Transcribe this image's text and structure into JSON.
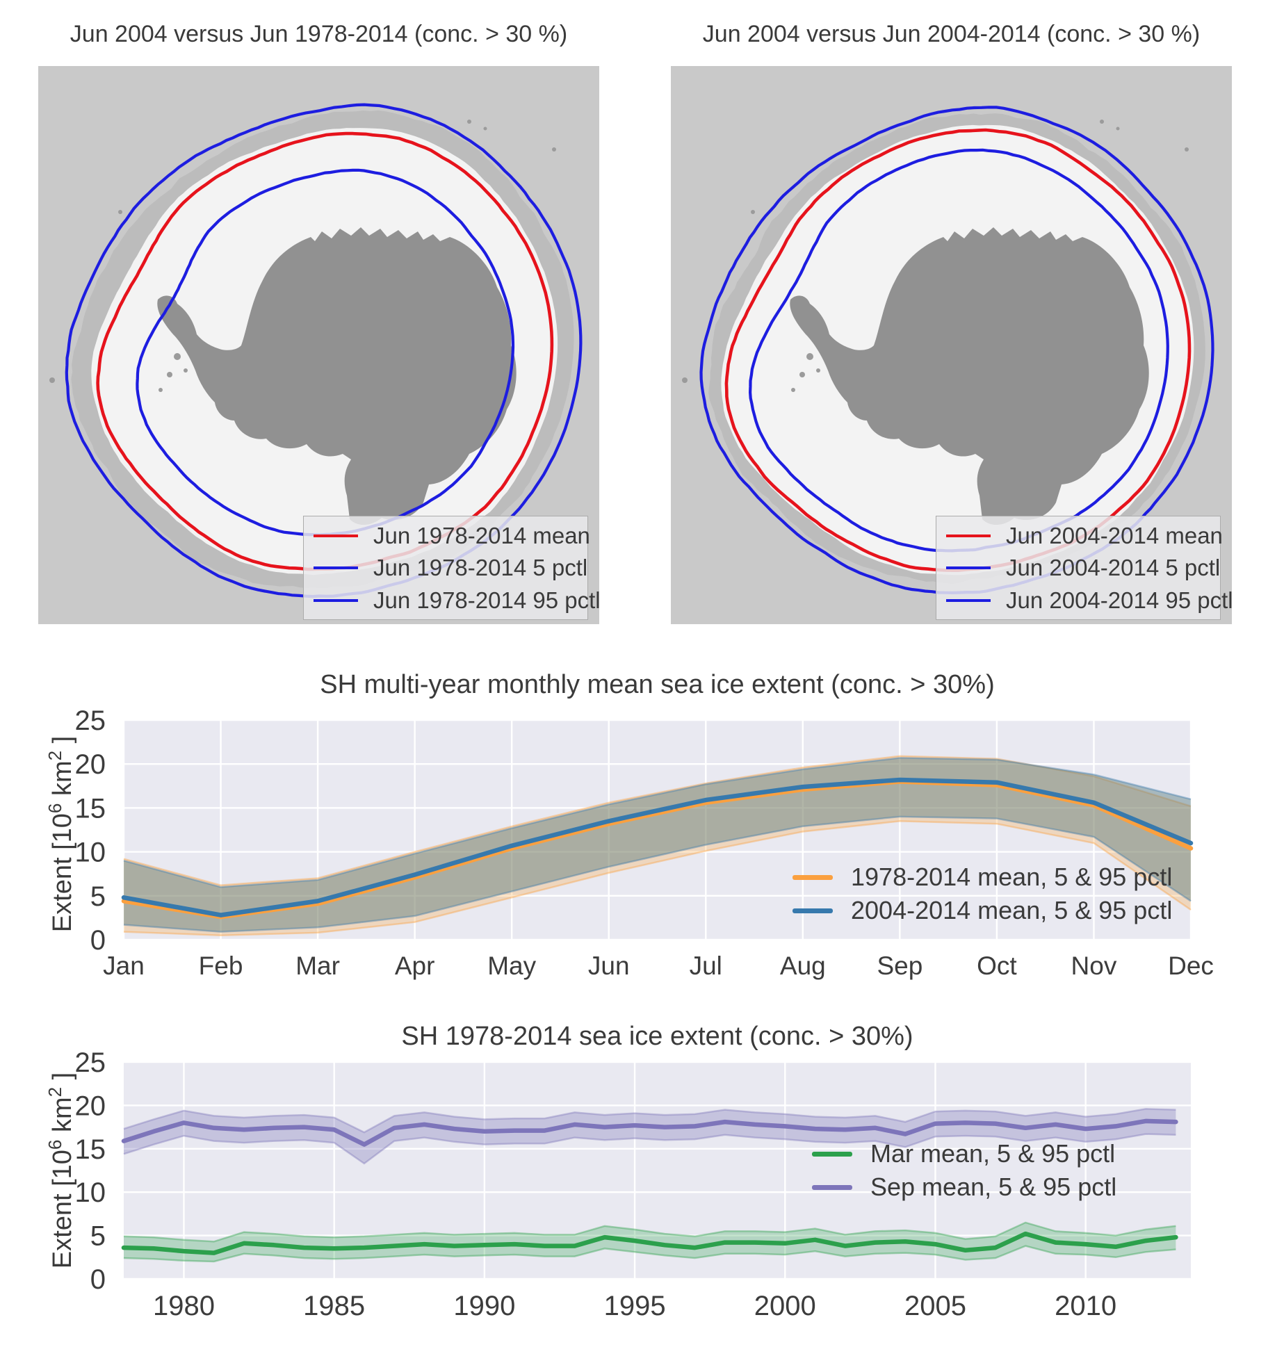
{
  "maps": {
    "colors": {
      "ocean": "#c9c9c9",
      "ice_white": "#f3f3f3",
      "extent_2004_gray": "#bcbcbc",
      "land": "#919191",
      "island": "#9b9b9b",
      "mean_contour": "#e6131c",
      "pctl_contour": "#1d1de0"
    },
    "left": {
      "title": "Jun 2004 versus Jun 1978-2014 (conc. > 30 %)",
      "legend": [
        {
          "label": "Jun 1978-2014 mean",
          "color": "#e6131c"
        },
        {
          "label": "Jun 1978-2014 5 pctl",
          "color": "#1d1de0"
        },
        {
          "label": "Jun 1978-2014 95 pctl",
          "color": "#1d1de0"
        }
      ]
    },
    "right": {
      "title": "Jun 2004 versus Jun 2004-2014 (conc. > 30 %)",
      "legend": [
        {
          "label": "Jun 2004-2014 mean",
          "color": "#e6131c"
        },
        {
          "label": "Jun 2004-2014 5 pctl",
          "color": "#1d1de0"
        },
        {
          "label": "Jun 2004-2014 95 pctl",
          "color": "#1d1de0"
        }
      ]
    }
  },
  "labels": {
    "ylabel_pre": "Extent [10",
    "ylabel_sup1": "6",
    "ylabel_mid": "  km",
    "ylabel_sup2": "2",
    "ylabel_post": " ]"
  },
  "chart_data": [
    {
      "type": "line",
      "title": "SH multi-year monthly mean sea ice extent (conc. > 30%)",
      "ylabel": "Extent [10^6 km^2]",
      "background": "#e9e9f1",
      "grid": true,
      "legend_position": "center right",
      "categories": [
        "Jan",
        "Feb",
        "Mar",
        "Apr",
        "May",
        "Jun",
        "Jul",
        "Aug",
        "Sep",
        "Oct",
        "Nov",
        "Dec"
      ],
      "ylim": [
        0,
        25
      ],
      "yticks": [
        0,
        5,
        10,
        15,
        20,
        25
      ],
      "series": [
        {
          "name": "1978-2014 mean, 5 & 95 pctl",
          "color": "#fba03f",
          "band_color": "rgba(250,164,58,0.28)",
          "mean": [
            4.4,
            2.6,
            4.1,
            7.1,
            10.4,
            13.2,
            15.6,
            17.1,
            18.0,
            17.6,
            15.3,
            10.4
          ],
          "p5": [
            0.9,
            0.5,
            0.8,
            2.0,
            4.8,
            7.6,
            10.1,
            12.3,
            13.5,
            13.2,
            11.0,
            3.4
          ],
          "p95": [
            9.2,
            6.2,
            7.0,
            10.0,
            12.9,
            15.6,
            17.8,
            19.6,
            20.9,
            20.6,
            18.6,
            15.2
          ]
        },
        {
          "name": "2004-2014 mean, 5 & 95 pctl",
          "color": "#3779ad",
          "band_color": "rgba(86,124,128,0.45)",
          "mean": [
            4.8,
            2.8,
            4.4,
            7.4,
            10.7,
            13.5,
            15.9,
            17.4,
            18.2,
            17.9,
            15.6,
            11.0
          ],
          "p5": [
            1.7,
            0.9,
            1.4,
            2.7,
            5.5,
            8.3,
            10.8,
            12.9,
            14.0,
            13.8,
            11.7,
            4.4
          ],
          "p95": [
            9.0,
            6.0,
            6.8,
            9.8,
            12.7,
            15.4,
            17.7,
            19.4,
            20.7,
            20.5,
            18.8,
            16.0
          ]
        }
      ]
    },
    {
      "type": "line",
      "title": "SH 1978-2014 sea ice extent (conc. > 30%)",
      "ylabel": "Extent [10^6 km^2]",
      "background": "#e9e9f1",
      "grid": true,
      "legend_position": "center right",
      "x": [
        1978,
        1979,
        1980,
        1981,
        1982,
        1983,
        1984,
        1985,
        1986,
        1987,
        1988,
        1989,
        1990,
        1991,
        1992,
        1993,
        1994,
        1995,
        1996,
        1997,
        1998,
        1999,
        2000,
        2001,
        2002,
        2003,
        2004,
        2005,
        2006,
        2007,
        2008,
        2009,
        2010,
        2011,
        2012,
        2013
      ],
      "xlim": [
        1978,
        2013.5
      ],
      "xticks": [
        1980,
        1985,
        1990,
        1995,
        2000,
        2005,
        2010
      ],
      "ylim": [
        0,
        25
      ],
      "yticks": [
        0,
        5,
        10,
        15,
        20,
        25
      ],
      "series": [
        {
          "name": "Mar mean, 5 & 95 pctl",
          "color": "#2ca04c",
          "band_color": "rgba(44,160,76,0.28)",
          "mean": [
            3.6,
            3.5,
            3.2,
            3.0,
            4.1,
            3.9,
            3.6,
            3.5,
            3.6,
            3.8,
            4.0,
            3.8,
            3.9,
            4.0,
            3.8,
            3.8,
            4.8,
            4.4,
            3.9,
            3.6,
            4.2,
            4.2,
            4.1,
            4.5,
            3.8,
            4.2,
            4.3,
            4.0,
            3.3,
            3.6,
            5.2,
            4.2,
            4.0,
            3.7,
            4.4,
            4.8
          ],
          "p5": [
            2.4,
            2.3,
            2.1,
            2.0,
            2.9,
            2.7,
            2.4,
            2.3,
            2.4,
            2.6,
            2.8,
            2.6,
            2.7,
            2.8,
            2.6,
            2.6,
            3.5,
            3.1,
            2.7,
            2.4,
            2.9,
            2.9,
            2.8,
            3.2,
            2.6,
            2.9,
            3.0,
            2.8,
            2.2,
            2.4,
            3.8,
            2.9,
            2.8,
            2.5,
            3.1,
            3.4
          ],
          "p95": [
            4.9,
            4.8,
            4.5,
            4.3,
            5.4,
            5.2,
            4.9,
            4.8,
            4.9,
            5.1,
            5.3,
            5.1,
            5.2,
            5.3,
            5.1,
            5.1,
            6.1,
            5.7,
            5.2,
            4.9,
            5.5,
            5.5,
            5.4,
            5.8,
            5.1,
            5.5,
            5.6,
            5.3,
            4.6,
            4.9,
            6.5,
            5.5,
            5.3,
            5.0,
            5.7,
            6.1
          ]
        },
        {
          "name": "Sep mean, 5 & 95 pctl",
          "color": "#7d75ba",
          "band_color": "rgba(125,117,186,0.33)",
          "mean": [
            15.9,
            17.0,
            18.0,
            17.4,
            17.2,
            17.4,
            17.5,
            17.2,
            15.5,
            17.4,
            17.8,
            17.3,
            17.0,
            17.1,
            17.1,
            17.8,
            17.5,
            17.7,
            17.5,
            17.6,
            18.1,
            17.8,
            17.6,
            17.3,
            17.2,
            17.4,
            16.7,
            17.9,
            18.0,
            17.9,
            17.4,
            17.8,
            17.3,
            17.6,
            18.2,
            18.1
          ],
          "p5": [
            14.4,
            15.5,
            16.5,
            15.9,
            15.7,
            15.9,
            16.0,
            15.7,
            13.3,
            15.9,
            16.3,
            15.8,
            15.5,
            15.6,
            15.6,
            16.3,
            16.0,
            16.2,
            16.0,
            16.1,
            16.6,
            16.3,
            16.1,
            15.8,
            15.7,
            15.9,
            15.2,
            16.4,
            16.5,
            16.4,
            15.9,
            16.3,
            15.8,
            16.1,
            16.7,
            16.6
          ],
          "p95": [
            17.3,
            18.4,
            19.4,
            18.8,
            18.6,
            18.8,
            18.9,
            18.6,
            16.9,
            18.8,
            19.2,
            18.7,
            18.4,
            18.5,
            18.5,
            19.2,
            18.9,
            19.1,
            18.9,
            19.0,
            19.5,
            19.2,
            19.0,
            18.7,
            18.6,
            18.8,
            18.1,
            19.3,
            19.4,
            19.3,
            18.8,
            19.2,
            18.7,
            19.0,
            19.6,
            19.5
          ]
        }
      ]
    }
  ]
}
